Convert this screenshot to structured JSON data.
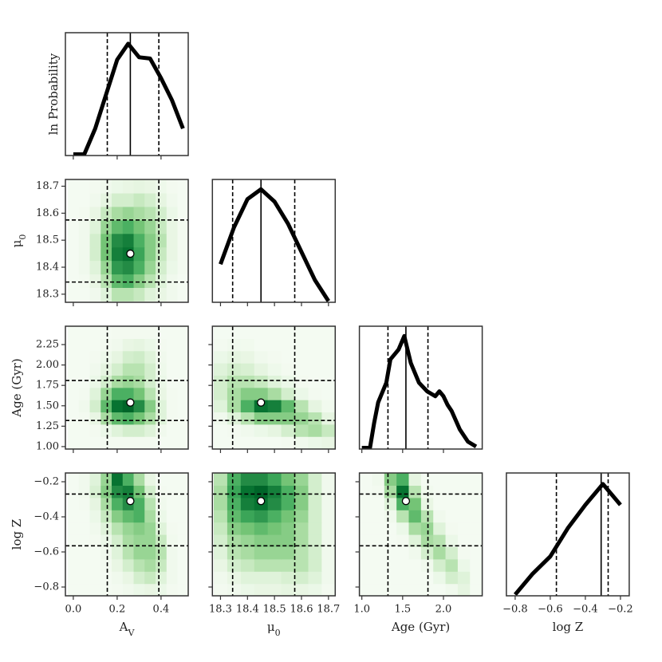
{
  "chart_data": {
    "type": "corner",
    "diagonal_ylabel": "ln  Probability",
    "diagonal_ylim": [
      0,
      1
    ],
    "colormap": [
      "#f7fcf5",
      "#e5f5e0",
      "#c7e9c0",
      "#a1d99b",
      "#74c476",
      "#41ab5d",
      "#238b45",
      "#006d2c",
      "#00441b"
    ],
    "clim": [
      0,
      1
    ],
    "line_color": "#000000",
    "point_color": "#ffffff",
    "parameters": [
      {
        "label": "A",
        "label_sub": "V",
        "lim": [
          -0.036,
          0.524
        ],
        "ticks": [
          {
            "value": 0,
            "label": "0.0"
          },
          0.2,
          0.4
        ],
        "bins": [
          -0.025,
          0.025,
          0.075,
          0.125,
          0.175,
          0.225,
          0.275,
          0.325,
          0.375,
          0.425,
          0.475,
          0.525
        ],
        "lower": 0.155,
        "best": 0.26,
        "upper": 0.39,
        "profile": {
          "x": [
            0,
            0.05,
            0.1,
            0.15,
            0.2,
            0.25,
            0.3,
            0.35,
            0.4,
            0.45,
            0.5
          ],
          "values": [
            0.01,
            0.01,
            0.22,
            0.5,
            0.78,
            0.91,
            0.8,
            0.79,
            0.63,
            0.45,
            0.22
          ]
        }
      },
      {
        "label": "μ",
        "label_sub": "0",
        "lim": [
          18.27,
          18.725
        ],
        "ticks": [
          18.3,
          18.4,
          18.5,
          18.6,
          18.7
        ],
        "bins": [
          18.275,
          18.325,
          18.375,
          18.425,
          18.475,
          18.525,
          18.575,
          18.625,
          18.675,
          18.725
        ],
        "lower": 18.345,
        "best": 18.45,
        "upper": 18.575,
        "profile": {
          "x": [
            18.3,
            18.35,
            18.4,
            18.45,
            18.5,
            18.55,
            18.6,
            18.65,
            18.7
          ],
          "values": [
            0.31,
            0.61,
            0.84,
            0.92,
            0.82,
            0.64,
            0.41,
            0.18,
            0.01
          ]
        }
      },
      {
        "label": "Age (Gyr)",
        "lim": [
          0.97,
          2.475
        ],
        "ticks": [
          {
            "value": 1,
            "label": "1.0"
          },
          1.5,
          {
            "value": 2,
            "label": "2.0"
          }
        ],
        "yticks": [
          {
            "value": 1,
            "label": "1.00"
          },
          1.25,
          {
            "value": 1.5,
            "label": "1.50"
          },
          1.75,
          {
            "value": 2,
            "label": "2.00"
          },
          2.25
        ],
        "bins": [
          0.975,
          1.125,
          1.275,
          1.425,
          1.575,
          1.725,
          1.875,
          2.025,
          2.175,
          2.325,
          2.475
        ],
        "lower": 1.32,
        "best": 1.54,
        "upper": 1.81,
        "profile": {
          "x": [
            1.0,
            1.1,
            1.15,
            1.2,
            1.3,
            1.35,
            1.4,
            1.45,
            1.52,
            1.6,
            1.7,
            1.8,
            1.9,
            1.95,
            2.0,
            2.05,
            2.1,
            2.2,
            2.3,
            2.4
          ],
          "values": [
            0.01,
            0.01,
            0.21,
            0.38,
            0.54,
            0.73,
            0.77,
            0.81,
            0.92,
            0.7,
            0.54,
            0.47,
            0.43,
            0.47,
            0.43,
            0.36,
            0.31,
            0.16,
            0.06,
            0.02
          ]
        }
      },
      {
        "label": "log  Z",
        "lim": [
          -0.85,
          -0.15
        ],
        "ticks": [
          {
            "value": -0.8,
            "label": "−0.8"
          },
          {
            "value": -0.6,
            "label": "−0.6"
          },
          {
            "value": -0.4,
            "label": "−0.4"
          },
          {
            "value": -0.2,
            "label": "−0.2"
          }
        ],
        "bins": [
          -0.85,
          -0.78,
          -0.71,
          -0.64,
          -0.57,
          -0.5,
          -0.43,
          -0.36,
          -0.29,
          -0.22,
          -0.15
        ],
        "lower": -0.565,
        "best": -0.31,
        "upper": -0.27,
        "profile": {
          "x": [
            -0.8,
            -0.7,
            -0.6,
            -0.5,
            -0.4,
            -0.3,
            -0.2
          ],
          "values": [
            0.01,
            0.18,
            0.32,
            0.55,
            0.74,
            0.91,
            0.74
          ]
        }
      }
    ],
    "heatmaps": [
      [
        [
          [
            0.02,
            0.02,
            0.05,
            0.15,
            0.3,
            0.3,
            0.25,
            0.15,
            0.1,
            0.05,
            0.02
          ],
          [
            0.02,
            0.03,
            0.1,
            0.3,
            0.55,
            0.6,
            0.45,
            0.3,
            0.15,
            0.05,
            0.02
          ],
          [
            0.02,
            0.05,
            0.15,
            0.4,
            0.7,
            0.75,
            0.6,
            0.4,
            0.2,
            0.08,
            0.03
          ],
          [
            0.02,
            0.05,
            0.2,
            0.5,
            0.8,
            0.85,
            0.65,
            0.45,
            0.25,
            0.1,
            0.03
          ],
          [
            0.02,
            0.05,
            0.2,
            0.5,
            0.75,
            0.8,
            0.6,
            0.45,
            0.3,
            0.1,
            0.03
          ],
          [
            0.02,
            0.05,
            0.15,
            0.4,
            0.55,
            0.6,
            0.5,
            0.4,
            0.25,
            0.1,
            0.03
          ],
          [
            0.02,
            0.03,
            0.1,
            0.25,
            0.35,
            0.4,
            0.35,
            0.3,
            0.2,
            0.08,
            0.02
          ],
          [
            0.02,
            0.02,
            0.05,
            0.12,
            0.2,
            0.2,
            0.25,
            0.2,
            0.12,
            0.05,
            0.02
          ],
          [
            0.02,
            0.02,
            0.03,
            0.05,
            0.08,
            0.1,
            0.12,
            0.1,
            0.06,
            0.03,
            0.02
          ]
        ]
      ],
      [
        [
          [
            0.02,
            0.02,
            0.02,
            0.03,
            0.03,
            0.03,
            0.03,
            0.03,
            0.02,
            0.02,
            0.02
          ],
          [
            0.02,
            0.02,
            0.03,
            0.08,
            0.15,
            0.2,
            0.2,
            0.15,
            0.05,
            0.02,
            0.02
          ],
          [
            0.02,
            0.03,
            0.1,
            0.35,
            0.55,
            0.6,
            0.5,
            0.35,
            0.15,
            0.03,
            0.02
          ],
          [
            0.02,
            0.05,
            0.2,
            0.55,
            0.85,
            0.9,
            0.75,
            0.45,
            0.15,
            0.03,
            0.02
          ],
          [
            0.02,
            0.03,
            0.15,
            0.4,
            0.6,
            0.6,
            0.5,
            0.3,
            0.1,
            0.03,
            0.02
          ],
          [
            0.02,
            0.02,
            0.08,
            0.2,
            0.35,
            0.4,
            0.35,
            0.2,
            0.08,
            0.02,
            0.02
          ],
          [
            0.02,
            0.02,
            0.05,
            0.12,
            0.2,
            0.3,
            0.3,
            0.2,
            0.06,
            0.02,
            0.02
          ],
          [
            0.02,
            0.02,
            0.03,
            0.06,
            0.12,
            0.2,
            0.22,
            0.15,
            0.05,
            0.02,
            0.02
          ],
          [
            0.02,
            0.02,
            0.02,
            0.03,
            0.05,
            0.1,
            0.12,
            0.08,
            0.03,
            0.02,
            0.02
          ],
          [
            0.02,
            0.02,
            0.02,
            0.02,
            0.03,
            0.03,
            0.03,
            0.03,
            0.02,
            0.02,
            0.02
          ]
        ],
        [
          [
            0.02,
            0.02,
            0.02,
            0.02,
            0.02,
            0.03,
            0.05,
            0.08,
            0.1
          ],
          [
            0.02,
            0.03,
            0.05,
            0.08,
            0.12,
            0.2,
            0.3,
            0.35,
            0.25
          ],
          [
            0.05,
            0.15,
            0.3,
            0.45,
            0.45,
            0.45,
            0.4,
            0.3,
            0.12
          ],
          [
            0.15,
            0.35,
            0.6,
            0.85,
            0.8,
            0.55,
            0.3,
            0.12,
            0.04
          ],
          [
            0.2,
            0.35,
            0.45,
            0.45,
            0.35,
            0.2,
            0.08,
            0.03,
            0.02
          ],
          [
            0.2,
            0.3,
            0.3,
            0.25,
            0.15,
            0.08,
            0.03,
            0.02,
            0.02
          ],
          [
            0.15,
            0.2,
            0.18,
            0.12,
            0.06,
            0.03,
            0.02,
            0.02,
            0.02
          ],
          [
            0.08,
            0.12,
            0.1,
            0.05,
            0.03,
            0.02,
            0.02,
            0.02,
            0.02
          ],
          [
            0.03,
            0.05,
            0.04,
            0.02,
            0.02,
            0.02,
            0.02,
            0.02,
            0.02
          ],
          [
            0.02,
            0.02,
            0.02,
            0.02,
            0.02,
            0.02,
            0.02,
            0.02,
            0.02
          ]
        ]
      ],
      [
        [
          [
            0.02,
            0.02,
            0.02,
            0.02,
            0.03,
            0.05,
            0.08,
            0.1,
            0.08,
            0.03,
            0.02
          ],
          [
            0.02,
            0.02,
            0.02,
            0.02,
            0.05,
            0.1,
            0.2,
            0.25,
            0.15,
            0.05,
            0.02
          ],
          [
            0.02,
            0.02,
            0.02,
            0.03,
            0.1,
            0.2,
            0.3,
            0.35,
            0.25,
            0.05,
            0.02
          ],
          [
            0.02,
            0.02,
            0.02,
            0.05,
            0.15,
            0.3,
            0.4,
            0.4,
            0.3,
            0.05,
            0.02
          ],
          [
            0.02,
            0.02,
            0.03,
            0.08,
            0.2,
            0.35,
            0.4,
            0.4,
            0.25,
            0.04,
            0.02
          ],
          [
            0.02,
            0.02,
            0.05,
            0.15,
            0.3,
            0.4,
            0.45,
            0.4,
            0.15,
            0.03,
            0.02
          ],
          [
            0.02,
            0.02,
            0.08,
            0.25,
            0.45,
            0.55,
            0.6,
            0.35,
            0.08,
            0.02,
            0.02
          ],
          [
            0.02,
            0.03,
            0.12,
            0.35,
            0.6,
            0.75,
            0.6,
            0.3,
            0.05,
            0.02,
            0.02
          ],
          [
            0.02,
            0.05,
            0.18,
            0.45,
            0.75,
            0.8,
            0.5,
            0.2,
            0.03,
            0.02,
            0.02
          ],
          [
            0.02,
            0.05,
            0.15,
            0.4,
            0.85,
            0.6,
            0.35,
            0.1,
            0.02,
            0.02,
            0.02
          ]
        ],
        [
          [
            0.03,
            0.05,
            0.08,
            0.1,
            0.1,
            0.12,
            0.1,
            0.08,
            0.03
          ],
          [
            0.05,
            0.1,
            0.15,
            0.15,
            0.15,
            0.18,
            0.2,
            0.15,
            0.05
          ],
          [
            0.1,
            0.2,
            0.25,
            0.3,
            0.3,
            0.3,
            0.3,
            0.2,
            0.05
          ],
          [
            0.15,
            0.3,
            0.35,
            0.4,
            0.4,
            0.4,
            0.3,
            0.2,
            0.05
          ],
          [
            0.2,
            0.35,
            0.4,
            0.45,
            0.45,
            0.45,
            0.35,
            0.2,
            0.05
          ],
          [
            0.25,
            0.45,
            0.5,
            0.55,
            0.5,
            0.45,
            0.35,
            0.2,
            0.05
          ],
          [
            0.3,
            0.55,
            0.65,
            0.7,
            0.6,
            0.5,
            0.4,
            0.2,
            0.05
          ],
          [
            0.35,
            0.6,
            0.8,
            0.85,
            0.75,
            0.6,
            0.45,
            0.2,
            0.05
          ],
          [
            0.35,
            0.65,
            0.85,
            0.9,
            0.8,
            0.6,
            0.45,
            0.2,
            0.05
          ],
          [
            0.3,
            0.6,
            0.75,
            0.75,
            0.65,
            0.5,
            0.4,
            0.2,
            0.05
          ]
        ],
        [
          [
            0.02,
            0.02,
            0.02,
            0.02,
            0.02,
            0.02,
            0.02,
            0.05,
            0.12,
            0.02
          ],
          [
            0.02,
            0.02,
            0.02,
            0.02,
            0.02,
            0.02,
            0.08,
            0.2,
            0.15,
            0.02
          ],
          [
            0.02,
            0.02,
            0.02,
            0.02,
            0.02,
            0.05,
            0.2,
            0.3,
            0.08,
            0.02
          ],
          [
            0.02,
            0.02,
            0.02,
            0.02,
            0.05,
            0.2,
            0.35,
            0.2,
            0.03,
            0.02
          ],
          [
            0.02,
            0.02,
            0.02,
            0.03,
            0.15,
            0.35,
            0.3,
            0.08,
            0.02,
            0.02
          ],
          [
            0.02,
            0.02,
            0.02,
            0.08,
            0.35,
            0.4,
            0.15,
            0.03,
            0.02,
            0.02
          ],
          [
            0.02,
            0.02,
            0.05,
            0.3,
            0.55,
            0.3,
            0.05,
            0.02,
            0.02,
            0.02
          ],
          [
            0.02,
            0.02,
            0.15,
            0.6,
            0.5,
            0.1,
            0.02,
            0.02,
            0.02,
            0.02
          ],
          [
            0.02,
            0.03,
            0.35,
            0.85,
            0.3,
            0.04,
            0.02,
            0.02,
            0.02,
            0.02
          ],
          [
            0.02,
            0.05,
            0.45,
            0.6,
            0.12,
            0.02,
            0.02,
            0.02,
            0.02,
            0.02
          ]
        ]
      ]
    ]
  }
}
